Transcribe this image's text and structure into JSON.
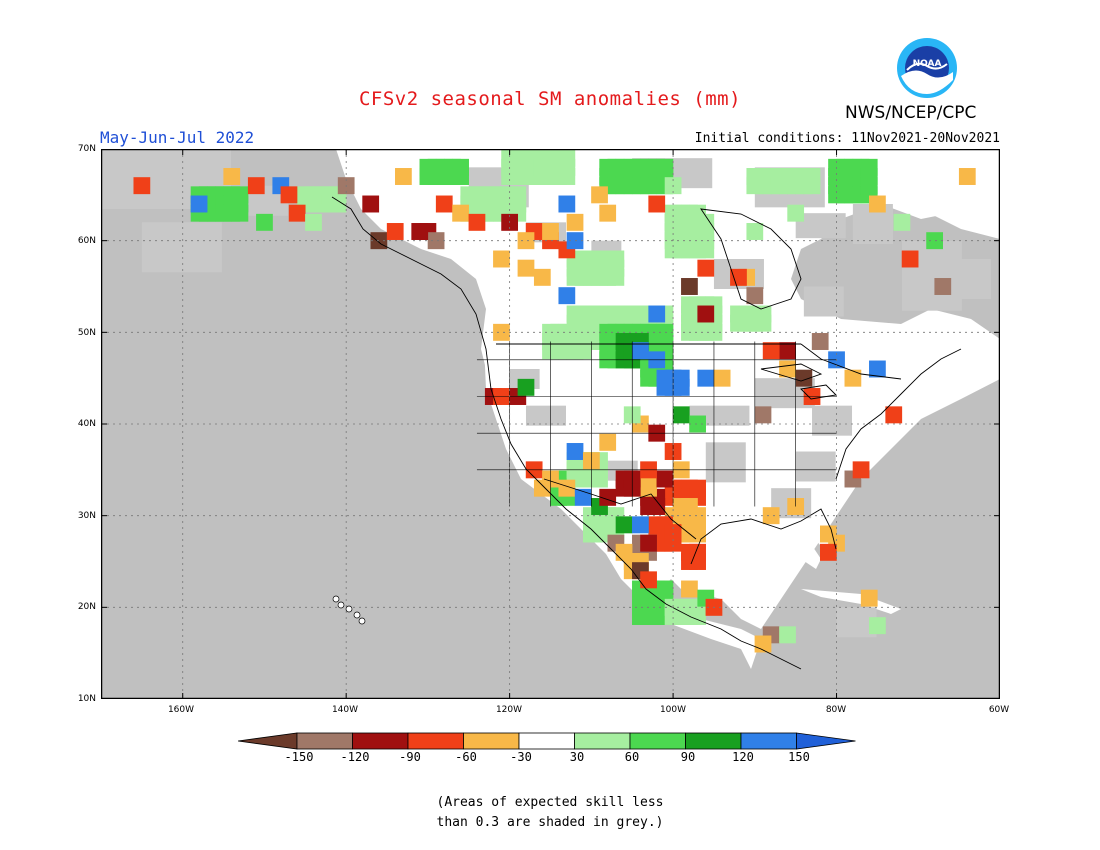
{
  "title": "CFSv2 seasonal SM anomalies (mm)",
  "period": "May-Jun-Jul 2022",
  "initial_conditions": "Initial conditions: 11Nov2021-20Nov2021",
  "agency": "NWS/NCEP/CPC",
  "logo_text": "NOAA",
  "latitude_labels": [
    "70N",
    "60N",
    "50N",
    "40N",
    "30N",
    "20N",
    "10N"
  ],
  "longitude_labels": [
    "160W",
    "140W",
    "120W",
    "100W",
    "80W",
    "60W"
  ],
  "colorbar": {
    "labels": [
      "-150",
      "-120",
      "-90",
      "-60",
      "-30",
      "30",
      "60",
      "90",
      "120",
      "150"
    ],
    "colors": [
      "#6b3a2a",
      "#a07868",
      "#a01010",
      "#f04018",
      "#f8b848",
      "#ffffff",
      "#a6eea0",
      "#4cd850",
      "#18a020",
      "#3080e8",
      "#2060d8"
    ]
  },
  "note_lines": [
    "(Areas of expected skill less",
    "than 0.3 are shaded in grey.)"
  ],
  "colors": {
    "grey_skill": "#c0c0c0",
    "title": "#e41a1c",
    "period": "#1f4fd6"
  }
}
